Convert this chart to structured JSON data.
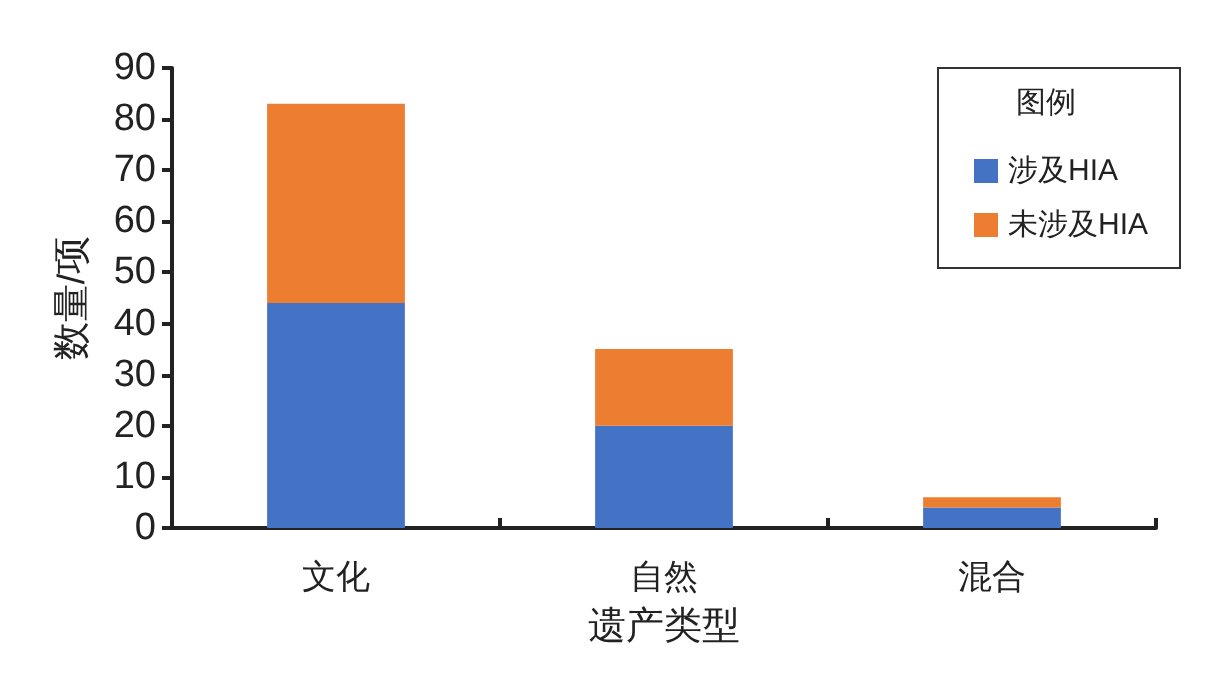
{
  "chart_data": {
    "type": "bar",
    "stacked": true,
    "xlabel": "遗产类型",
    "ylabel": "数量/项",
    "legend_title": "图例",
    "legend": "top right",
    "grid": false,
    "categories": [
      "文化",
      "自然",
      "混合"
    ],
    "series": [
      {
        "name": "涉及HIA",
        "color": "#4472c4",
        "values": [
          44,
          20,
          4
        ]
      },
      {
        "name": "未涉及HIA",
        "color": "#ed7d31",
        "values": [
          39,
          15,
          2
        ]
      }
    ],
    "ylim": [
      0,
      90
    ],
    "yticks": [
      0,
      10,
      20,
      30,
      40,
      50,
      60,
      70,
      80,
      90
    ]
  }
}
